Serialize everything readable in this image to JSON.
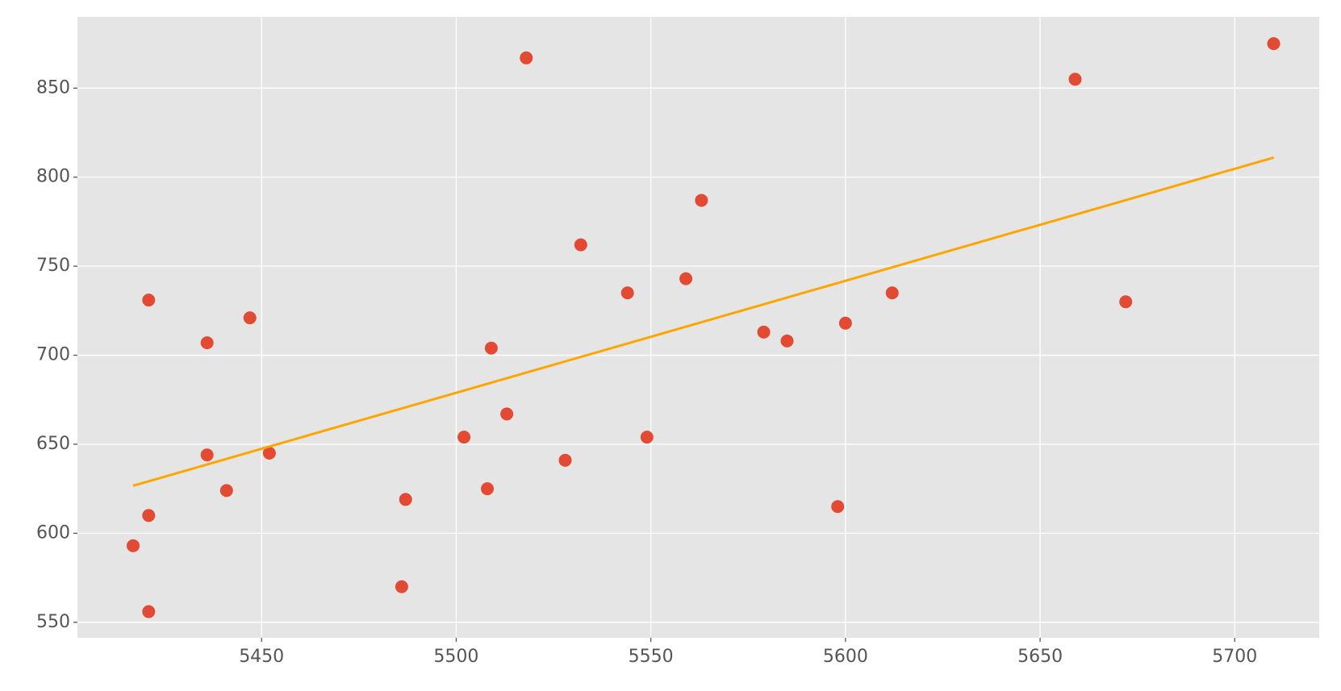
{
  "chart_data": {
    "type": "scatter",
    "series": [
      {
        "type": "scatter",
        "color": "#E24A33",
        "x": [
          5417,
          5421,
          5421,
          5421,
          5436,
          5436,
          5441,
          5447,
          5452,
          5486,
          5487,
          5502,
          5508,
          5509,
          5513,
          5518,
          5528,
          5532,
          5544,
          5549,
          5559,
          5563,
          5579,
          5585,
          5598,
          5600,
          5612,
          5659,
          5672,
          5710
        ],
        "values": [
          593,
          556,
          610,
          731,
          707,
          644,
          624,
          721,
          645,
          570,
          619,
          654,
          625,
          704,
          667,
          867,
          641,
          762,
          735,
          654,
          743,
          787,
          713,
          708,
          615,
          718,
          735,
          855,
          730,
          875
        ]
      },
      {
        "type": "line",
        "color": "#FFA500",
        "x": [
          5417,
          5710
        ],
        "values": [
          626.7,
          811
        ]
      }
    ],
    "xlim": [
      5402.7,
      5721.7
    ],
    "ylim": [
      541.3,
      890
    ],
    "xticks": [
      5450,
      5500,
      5550,
      5600,
      5650,
      5700
    ],
    "yticks": [
      550,
      600,
      650,
      700,
      750,
      800,
      850
    ],
    "grid": true,
    "background": "#E5E5E5",
    "grid_color": "#FFFFFF"
  }
}
